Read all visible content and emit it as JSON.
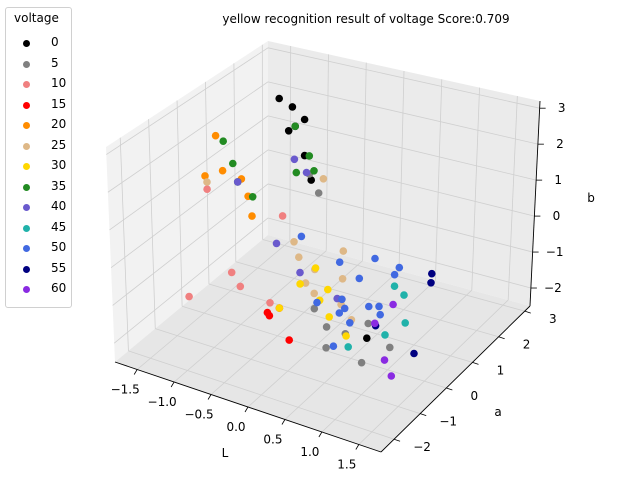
{
  "chart_data": {
    "type": "scatter",
    "dimensions": 3,
    "title": "yellow recognition result of voltage Score:0.709",
    "xlabel": "L",
    "ylabel": "a",
    "zlabel": "b",
    "xticks": [
      "−1.5",
      "−1.0",
      "−0.5",
      "0.0",
      "0.5",
      "1.0",
      "1.5"
    ],
    "yticks": [
      "−2",
      "−1",
      "0",
      "1",
      "2",
      "3"
    ],
    "zticks": [
      "−2",
      "−1",
      "0",
      "1",
      "2",
      "3"
    ],
    "xlim": [
      -1.8,
      1.8
    ],
    "ylim": [
      -2.5,
      3.2
    ],
    "zlim": [
      -2.5,
      3.2
    ],
    "grid": true,
    "legend": {
      "title": "voltage",
      "placement": "top-left outside"
    },
    "series": [
      {
        "name": "0",
        "color": "#000000",
        "points": [
          [
            -1.1,
            2.2,
            2.2
          ],
          [
            -1.2,
            2.0,
            2.5
          ],
          [
            -0.8,
            1.5,
            2.2
          ],
          [
            -0.6,
            1.3,
            1.6
          ],
          [
            -1.0,
            1.8,
            1.8
          ],
          [
            -0.9,
            2.1,
            2.0
          ],
          [
            1.3,
            -1.6,
            -0.5
          ],
          [
            -0.4,
            1.0,
            1.2
          ]
        ]
      },
      {
        "name": "5",
        "color": "#808080",
        "points": [
          [
            0.5,
            -0.9,
            -1.1
          ],
          [
            0.9,
            -1.3,
            -0.8
          ],
          [
            1.1,
            -1.0,
            -0.6
          ],
          [
            1.3,
            -1.8,
            -1.0
          ],
          [
            -0.3,
            1.0,
            0.9
          ],
          [
            -0.5,
            1.2,
            1.2
          ],
          [
            0.6,
            -1.2,
            -1.4
          ],
          [
            1.5,
            -1.3,
            -0.8
          ],
          [
            0.3,
            -0.8,
            -0.8
          ]
        ]
      },
      {
        "name": "10",
        "color": "#f08080",
        "points": [
          [
            -1.4,
            -0.8,
            -1.5
          ],
          [
            -0.7,
            -0.8,
            -0.8
          ],
          [
            -1.0,
            -0.3,
            -0.9
          ],
          [
            -0.6,
            0.5,
            0.4
          ],
          [
            -1.5,
            0.2,
            0.8
          ],
          [
            -0.3,
            -0.8,
            -1.0
          ]
        ]
      },
      {
        "name": "15",
        "color": "#ff0000",
        "points": [
          [
            -0.3,
            -0.9,
            -1.2
          ],
          [
            -0.1,
            -1.0,
            -0.9
          ],
          [
            0.1,
            -1.2,
            -1.5
          ],
          [
            -0.2,
            -1.1,
            -1.1
          ]
        ]
      },
      {
        "name": "20",
        "color": "#ff8c00",
        "points": [
          [
            -1.6,
            0.8,
            1.9
          ],
          [
            -1.4,
            0.5,
            1.2
          ],
          [
            -1.3,
            0.9,
            0.8
          ],
          [
            -1.1,
            0.6,
            0.6
          ],
          [
            -0.9,
            0.2,
            0.4
          ],
          [
            -1.6,
            0.4,
            1.0
          ]
        ]
      },
      {
        "name": "25",
        "color": "#deb887",
        "points": [
          [
            -0.2,
            0.0,
            -0.2
          ],
          [
            0.0,
            -0.3,
            -0.6
          ],
          [
            0.2,
            -0.5,
            0.0
          ],
          [
            0.5,
            -0.3,
            -0.2
          ],
          [
            0.6,
            -0.6,
            -0.5
          ],
          [
            0.3,
            -0.8,
            -0.4
          ],
          [
            -0.3,
            0.1,
            0.1
          ],
          [
            -1.5,
            0.2,
            1.0
          ],
          [
            -0.2,
            0.9,
            1.4
          ],
          [
            0.8,
            -0.8,
            -0.8
          ],
          [
            0.7,
            -0.9,
            -0.4
          ],
          [
            0.4,
            0.0,
            0.3
          ]
        ]
      },
      {
        "name": "30",
        "color": "#ffd700",
        "points": [
          [
            0.0,
            -0.5,
            -0.5
          ],
          [
            0.3,
            -0.6,
            -0.7
          ],
          [
            0.5,
            -0.8,
            -0.9
          ],
          [
            0.8,
            -1.0,
            -1.1
          ],
          [
            -0.1,
            -1.0,
            -0.9
          ],
          [
            0.1,
            -0.2,
            -0.2
          ],
          [
            0.3,
            -0.3,
            -0.6
          ]
        ]
      },
      {
        "name": "35",
        "color": "#228b22",
        "points": [
          [
            -1.5,
            0.8,
            1.8
          ],
          [
            -1.3,
            0.6,
            1.4
          ],
          [
            -1.0,
            0.5,
            0.7
          ],
          [
            -0.6,
            1.0,
            1.3
          ],
          [
            -0.8,
            1.5,
            2.2
          ],
          [
            -0.5,
            1.2,
            1.7
          ],
          [
            -0.4,
            1.1,
            1.4
          ],
          [
            -1.2,
            0.5,
            1.0
          ]
        ]
      },
      {
        "name": "40",
        "color": "#6a5acd",
        "points": [
          [
            -0.7,
            1.2,
            1.5
          ],
          [
            -0.5,
            1.1,
            1.3
          ],
          [
            -1.2,
            0.5,
            1.0
          ],
          [
            0.0,
            -0.5,
            -0.2
          ],
          [
            0.5,
            -0.5,
            -0.6
          ],
          [
            -0.5,
            0.0,
            0.0
          ]
        ]
      },
      {
        "name": "45",
        "color": "#20b2aa",
        "points": [
          [
            0.9,
            -1.2,
            -1.2
          ],
          [
            1.2,
            -0.3,
            0.0
          ],
          [
            1.6,
            -1.0,
            -0.3
          ],
          [
            1.4,
            -0.5,
            0.0
          ],
          [
            1.4,
            -1.2,
            -0.6
          ]
        ]
      },
      {
        "name": "50",
        "color": "#4169e1",
        "points": [
          [
            0.5,
            -0.4,
            0.3
          ],
          [
            0.8,
            -0.5,
            0.1
          ],
          [
            1.2,
            -0.3,
            0.3
          ],
          [
            1.3,
            -0.4,
            0.6
          ],
          [
            0.9,
            -0.2,
            0.5
          ],
          [
            1.0,
            -1.4,
            -0.4
          ],
          [
            0.6,
            -0.6,
            -0.5
          ],
          [
            0.3,
            -0.7,
            -0.7
          ],
          [
            0.6,
            -0.5,
            -0.8
          ],
          [
            0.7,
            -1.2,
            -1.3
          ],
          [
            0.6,
            -0.7,
            -0.8
          ],
          [
            1.1,
            -0.6,
            -0.4
          ],
          [
            -0.2,
            0.1,
            0.3
          ],
          [
            1.0,
            -0.7,
            -0.4
          ],
          [
            1.3,
            -1.1,
            -0.2
          ]
        ]
      },
      {
        "name": "55",
        "color": "#000080",
        "points": [
          [
            1.7,
            -0.3,
            0.6
          ],
          [
            1.8,
            -0.6,
            0.6
          ],
          [
            1.9,
            -1.5,
            -0.6
          ],
          [
            1.2,
            -1.0,
            -0.6
          ]
        ]
      },
      {
        "name": "60",
        "color": "#8a2be2",
        "points": [
          [
            1.4,
            -0.9,
            0.0
          ],
          [
            1.3,
            -1.3,
            -0.3
          ],
          [
            1.5,
            -1.5,
            -1.0
          ],
          [
            1.7,
            -1.8,
            -1.1
          ]
        ]
      }
    ]
  }
}
